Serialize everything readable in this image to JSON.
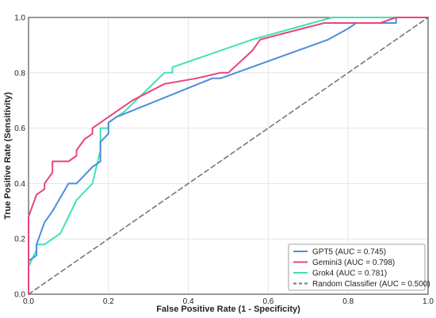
{
  "chart_data": {
    "type": "line",
    "title": "",
    "xlabel": "False Positive Rate (1 - Specificity)",
    "ylabel": "True Positive Rate (Sensitivity)",
    "xlim": [
      0,
      1
    ],
    "ylim": [
      0,
      1
    ],
    "xticks": [
      "0.0",
      "0.2",
      "0.4",
      "0.6",
      "0.8",
      "1.0"
    ],
    "yticks": [
      "0.0",
      "0.2",
      "0.4",
      "0.6",
      "0.8",
      "1.0"
    ],
    "grid": true,
    "legend_position": "bottom-right",
    "series": [
      {
        "name": "GPT5 (AUC = 0.745)",
        "color": "#4a8fdc",
        "style": "solid",
        "points": [
          [
            0,
            0.1
          ],
          [
            0,
            0.12
          ],
          [
            0.01,
            0.13
          ],
          [
            0.02,
            0.14
          ],
          [
            0.02,
            0.18
          ],
          [
            0.04,
            0.26
          ],
          [
            0.06,
            0.3
          ],
          [
            0.08,
            0.35
          ],
          [
            0.1,
            0.4
          ],
          [
            0.12,
            0.4
          ],
          [
            0.14,
            0.43
          ],
          [
            0.16,
            0.46
          ],
          [
            0.18,
            0.48
          ],
          [
            0.18,
            0.55
          ],
          [
            0.2,
            0.58
          ],
          [
            0.2,
            0.62
          ],
          [
            0.22,
            0.64
          ],
          [
            0.46,
            0.78
          ],
          [
            0.48,
            0.78
          ],
          [
            0.5,
            0.79
          ],
          [
            0.75,
            0.92
          ],
          [
            0.8,
            0.96
          ],
          [
            0.82,
            0.98
          ],
          [
            0.92,
            0.98
          ],
          [
            0.92,
            1.0
          ],
          [
            1.0,
            1.0
          ]
        ]
      },
      {
        "name": "Gemini3 (AUC = 0.798)",
        "color": "#e8457a",
        "style": "solid",
        "points": [
          [
            0,
            0
          ],
          [
            0,
            0.28
          ],
          [
            0.02,
            0.36
          ],
          [
            0.04,
            0.38
          ],
          [
            0.04,
            0.4
          ],
          [
            0.05,
            0.42
          ],
          [
            0.06,
            0.44
          ],
          [
            0.06,
            0.48
          ],
          [
            0.1,
            0.48
          ],
          [
            0.12,
            0.5
          ],
          [
            0.12,
            0.52
          ],
          [
            0.14,
            0.56
          ],
          [
            0.16,
            0.58
          ],
          [
            0.16,
            0.6
          ],
          [
            0.18,
            0.62
          ],
          [
            0.26,
            0.7
          ],
          [
            0.34,
            0.76
          ],
          [
            0.42,
            0.78
          ],
          [
            0.48,
            0.8
          ],
          [
            0.5,
            0.8
          ],
          [
            0.56,
            0.88
          ],
          [
            0.58,
            0.92
          ],
          [
            0.66,
            0.95
          ],
          [
            0.74,
            0.98
          ],
          [
            0.88,
            0.98
          ],
          [
            0.92,
            1.0
          ],
          [
            1.0,
            1.0
          ]
        ]
      },
      {
        "name": "Grok4 (AUC = 0.781)",
        "color": "#40e0b8",
        "style": "solid",
        "points": [
          [
            0,
            0
          ],
          [
            0,
            0.1
          ],
          [
            0.02,
            0.16
          ],
          [
            0.02,
            0.18
          ],
          [
            0.04,
            0.18
          ],
          [
            0.08,
            0.22
          ],
          [
            0.12,
            0.34
          ],
          [
            0.16,
            0.4
          ],
          [
            0.18,
            0.52
          ],
          [
            0.18,
            0.6
          ],
          [
            0.2,
            0.6
          ],
          [
            0.2,
            0.62
          ],
          [
            0.24,
            0.66
          ],
          [
            0.34,
            0.8
          ],
          [
            0.36,
            0.8
          ],
          [
            0.36,
            0.82
          ],
          [
            0.56,
            0.92
          ],
          [
            0.66,
            0.96
          ],
          [
            0.76,
            1.0
          ],
          [
            0.9,
            1.0
          ],
          [
            1.0,
            1.0
          ]
        ]
      },
      {
        "name": "Random Classifier (AUC = 0.500)",
        "color": "#777777",
        "style": "dashed",
        "points": [
          [
            0,
            0
          ],
          [
            1,
            1
          ]
        ]
      }
    ]
  }
}
